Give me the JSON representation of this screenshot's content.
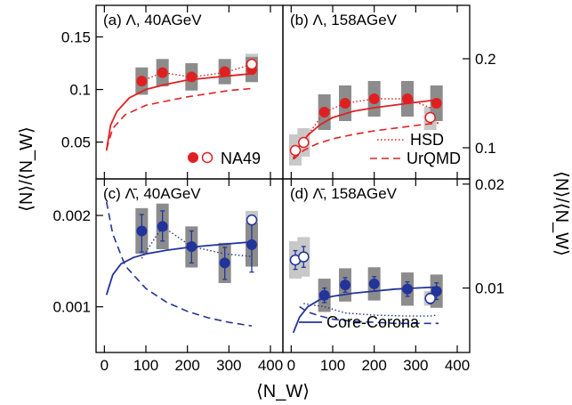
{
  "figure": {
    "y_label": "⟨N⟩/⟨N_W⟩",
    "x_label": "⟨N_W⟩"
  },
  "legend": {
    "na49": "NA49",
    "hsd": "HSD",
    "urqmd": "UrQMD",
    "core_corona": "Core-Corona"
  },
  "colors": {
    "lambda": "#e02020",
    "antilambda": "#22349a",
    "syst_dark": "#8c8c8c",
    "syst_light": "#c8c8c8"
  },
  "chart_data": [
    {
      "id": "a",
      "type": "scatter",
      "title": "(a) Λ, 40AGeV",
      "xlim": [
        -20,
        430
      ],
      "ylim": [
        0.015,
        0.18
      ],
      "yticks": [
        "0.05",
        "0.1",
        "0.15"
      ],
      "ytick_values": [
        0.05,
        0.1,
        0.15
      ],
      "xticks": [
        "0",
        "100",
        "200",
        "300",
        "400"
      ],
      "xtick_values": [
        0,
        100,
        200,
        300,
        400
      ],
      "y_axis": "left",
      "show_xticklabels": false,
      "color": "lambda",
      "na49_filled": {
        "x": [
          90,
          140,
          210,
          290,
          355
        ],
        "y": [
          0.108,
          0.116,
          0.112,
          0.117,
          0.119
        ],
        "syst_low": [
          0.095,
          0.103,
          0.099,
          0.105,
          0.107
        ],
        "syst_high": [
          0.121,
          0.129,
          0.125,
          0.129,
          0.131
        ]
      },
      "na49_open": {
        "x": [
          355
        ],
        "y": [
          0.124
        ],
        "syst_low": [
          0.113
        ],
        "syst_high": [
          0.134
        ]
      },
      "hsd": {
        "x": [
          90,
          140,
          210,
          290,
          355
        ],
        "y": [
          0.108,
          0.116,
          0.112,
          0.116,
          0.124
        ]
      },
      "urqmd": {
        "x": [
          5,
          20,
          50,
          100,
          150,
          200,
          250,
          300,
          355
        ],
        "y": [
          0.043,
          0.063,
          0.076,
          0.085,
          0.089,
          0.093,
          0.096,
          0.099,
          0.101
        ]
      },
      "core_corona": {
        "x": [
          5,
          15,
          30,
          60,
          100,
          150,
          200,
          250,
          300,
          355
        ],
        "y": [
          0.042,
          0.066,
          0.079,
          0.092,
          0.1,
          0.105,
          0.109,
          0.111,
          0.113,
          0.115
        ]
      }
    },
    {
      "id": "b",
      "type": "scatter",
      "title": "(b) Λ, 158AGeV",
      "xlim": [
        -20,
        430
      ],
      "ylim": [
        0.065,
        0.26
      ],
      "yticks": [
        "0.1",
        "0.2"
      ],
      "ytick_values": [
        0.1,
        0.2
      ],
      "xticks": [
        "0",
        "100",
        "200",
        "300",
        "400"
      ],
      "xtick_values": [
        0,
        100,
        200,
        300,
        400
      ],
      "y_axis": "right",
      "show_xticklabels": false,
      "color": "lambda",
      "na49_filled": {
        "x": [
          80,
          130,
          200,
          280,
          350
        ],
        "y": [
          0.14,
          0.15,
          0.155,
          0.155,
          0.15
        ],
        "syst_low": [
          0.12,
          0.13,
          0.135,
          0.135,
          0.13
        ],
        "syst_high": [
          0.16,
          0.17,
          0.175,
          0.175,
          0.17
        ]
      },
      "na49_open": {
        "x": [
          10,
          30,
          335
        ],
        "y": [
          0.097,
          0.106,
          0.134
        ],
        "syst_low": [
          0.08,
          0.09,
          0.12
        ],
        "syst_high": [
          0.115,
          0.122,
          0.146
        ]
      },
      "hsd": {
        "x": [
          10,
          30,
          80,
          130,
          200,
          280,
          335,
          350
        ],
        "y": [
          0.097,
          0.108,
          0.14,
          0.15,
          0.155,
          0.155,
          0.145,
          0.15
        ]
      },
      "urqmd": {
        "x": [
          5,
          30,
          60,
          100,
          150,
          200,
          250,
          300,
          355
        ],
        "y": [
          0.087,
          0.097,
          0.104,
          0.11,
          0.115,
          0.119,
          0.122,
          0.125,
          0.128
        ]
      },
      "core_corona": {
        "x": [
          5,
          20,
          40,
          70,
          100,
          150,
          200,
          250,
          300,
          355
        ],
        "y": [
          0.088,
          0.102,
          0.114,
          0.126,
          0.134,
          0.141,
          0.145,
          0.148,
          0.151,
          0.154
        ]
      }
    },
    {
      "id": "c",
      "type": "scatter",
      "title": "(c) Λ̄, 40AGeV",
      "xlim": [
        -20,
        430
      ],
      "ylim": [
        0.0005,
        0.0024
      ],
      "yticks": [
        "0.001",
        "0.002"
      ],
      "ytick_values": [
        0.001,
        0.002
      ],
      "xticks": [
        "0",
        "100",
        "200",
        "300",
        "400"
      ],
      "xtick_values": [
        0,
        100,
        200,
        300,
        400
      ],
      "y_axis": "left",
      "show_xticklabels": true,
      "color": "antilambda",
      "na49_filled": {
        "x": [
          90,
          140,
          210,
          290,
          355
        ],
        "y": [
          0.00183,
          0.00188,
          0.00166,
          0.00148,
          0.00168
        ],
        "err_low": [
          0.0016,
          0.00172,
          0.00148,
          0.0013,
          0.00138
        ],
        "err_high": [
          0.00201,
          0.00205,
          0.00183,
          0.00165,
          0.00195
        ],
        "syst_low": [
          0.00158,
          0.00163,
          0.00143,
          0.00126,
          0.00144
        ],
        "syst_high": [
          0.00208,
          0.00213,
          0.00188,
          0.0017,
          0.00192
        ]
      },
      "na49_open": {
        "x": [
          355
        ],
        "y": [
          0.00195
        ],
        "syst_low": [
          0.00185
        ],
        "syst_high": [
          0.00205
        ]
      },
      "hsd": {
        "x": [
          90,
          140,
          210,
          290,
          355
        ],
        "y": [
          0.00153,
          0.00188,
          0.00166,
          0.00158,
          0.00155
        ]
      },
      "urqmd": {
        "x": [
          5,
          20,
          50,
          100,
          150,
          200,
          250,
          300,
          355
        ],
        "y": [
          0.00215,
          0.0018,
          0.00145,
          0.0012,
          0.00105,
          0.00095,
          0.00088,
          0.00083,
          0.00079
        ]
      },
      "core_corona": {
        "x": [
          5,
          20,
          40,
          70,
          100,
          150,
          200,
          250,
          300,
          355
        ],
        "y": [
          0.00113,
          0.00135,
          0.00147,
          0.00154,
          0.00158,
          0.00162,
          0.00165,
          0.00167,
          0.00169,
          0.00171
        ]
      }
    },
    {
      "id": "d",
      "type": "scatter",
      "title": "(d) Λ̄, 158AGeV",
      "xlim": [
        -20,
        430
      ],
      "ylim": [
        0.0038,
        0.0205
      ],
      "yticks": [
        "0.01",
        "0.02"
      ],
      "ytick_values": [
        0.01,
        0.02
      ],
      "xticks": [
        "0",
        "100",
        "200",
        "300",
        "400"
      ],
      "xtick_values": [
        0,
        100,
        200,
        300,
        400
      ],
      "y_axis": "right",
      "show_xticklabels": true,
      "color": "antilambda",
      "na49_filled": {
        "x": [
          80,
          130,
          200,
          280,
          350
        ],
        "y": [
          0.0093,
          0.0103,
          0.0104,
          0.0099,
          0.0097
        ],
        "err_low": [
          0.0086,
          0.0096,
          0.0097,
          0.0092,
          0.0089
        ],
        "err_high": [
          0.01,
          0.011,
          0.0111,
          0.0106,
          0.0105
        ],
        "syst_low": [
          0.0077,
          0.0087,
          0.0088,
          0.0083,
          0.0081
        ],
        "syst_high": [
          0.0109,
          0.0119,
          0.012,
          0.0115,
          0.0113
        ]
      },
      "na49_open": {
        "x": [
          10,
          30,
          335
        ],
        "y": [
          0.0127,
          0.013,
          0.009
        ],
        "err_low": [
          0.0118,
          0.012,
          0.0085
        ],
        "err_high": [
          0.0136,
          0.014,
          0.0095
        ],
        "syst_low": [
          0.0109,
          0.0111,
          0.0083
        ],
        "syst_high": [
          0.0145,
          0.0149,
          0.0097
        ]
      },
      "hsd": {
        "x": [
          30,
          80,
          130,
          200,
          280,
          335,
          350
        ],
        "y": [
          0.0085,
          0.0082,
          0.0076,
          0.0074,
          0.0073,
          0.0073,
          0.0074
        ]
      },
      "urqmd": {
        "x": [
          20,
          40,
          70,
          100,
          150,
          200,
          250,
          300,
          355
        ],
        "y": [
          0.0082,
          0.0077,
          0.0073,
          0.007,
          0.0068,
          0.0067,
          0.0066,
          0.0066,
          0.0066
        ]
      },
      "core_corona": {
        "x": [
          5,
          20,
          40,
          70,
          100,
          150,
          200,
          250,
          300,
          355
        ],
        "y": [
          0.0057,
          0.0072,
          0.0082,
          0.0089,
          0.0092,
          0.0095,
          0.0097,
          0.0099,
          0.01,
          0.0101
        ]
      }
    }
  ]
}
